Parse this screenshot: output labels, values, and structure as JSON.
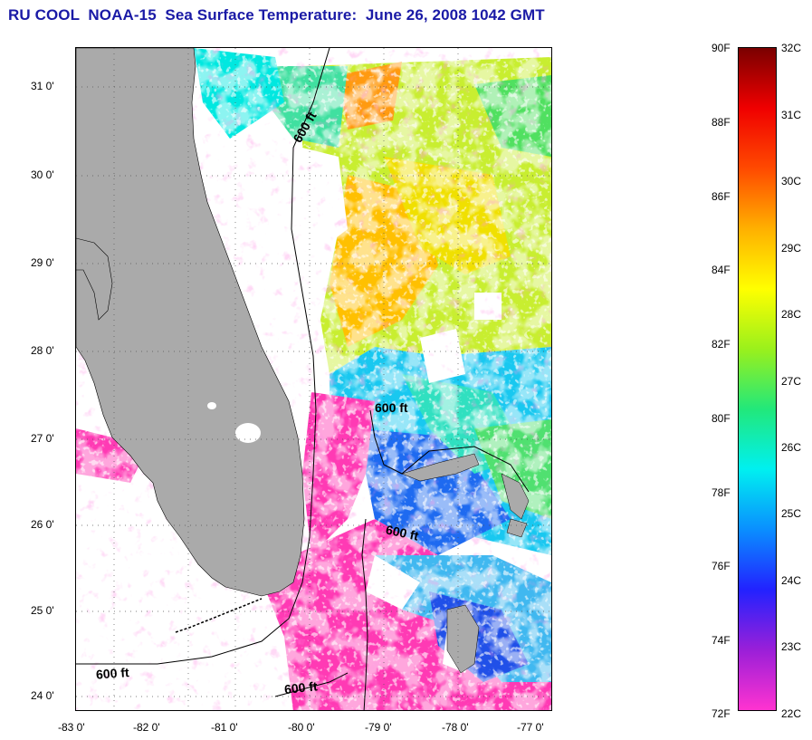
{
  "header": {
    "title": "RU COOL  NOAA-15  Sea Surface Temperature:  June 26, 2008 1042 GMT"
  },
  "map": {
    "lon_ticks": [
      "-83 0'",
      "-82 0'",
      "-81 0'",
      "-80 0'",
      "-79 0'",
      "-78 0'",
      "-77 0'"
    ],
    "lat_ticks": [
      "31 0'",
      "30 0'",
      "29 0'",
      "28 0'",
      "27 0'",
      "26 0'",
      "25 0'",
      "24 0'"
    ],
    "contour_labels": [
      "600 ft",
      "600 ft",
      "600 ft",
      "600 ft",
      "600 ft"
    ],
    "colors": {
      "land": "#aaaaaa",
      "no_data": "#ffffff",
      "frame": "#000000"
    }
  },
  "colorbar": {
    "fahrenheit_labels": [
      "90F",
      "88F",
      "86F",
      "84F",
      "82F",
      "80F",
      "78F",
      "76F",
      "74F",
      "72F"
    ],
    "celsius_labels": [
      "32C",
      "31C",
      "30C",
      "29C",
      "28C",
      "27C",
      "26C",
      "25C",
      "24C",
      "23C",
      "22C"
    ],
    "gradient_colors": [
      "#ff33d0",
      "#9a1fd8",
      "#2222ff",
      "#0a8fff",
      "#00f0f0",
      "#22e87a",
      "#9af01c",
      "#ffff00",
      "#ffb000",
      "#ff4a00",
      "#f00000",
      "#7a0000"
    ]
  }
}
